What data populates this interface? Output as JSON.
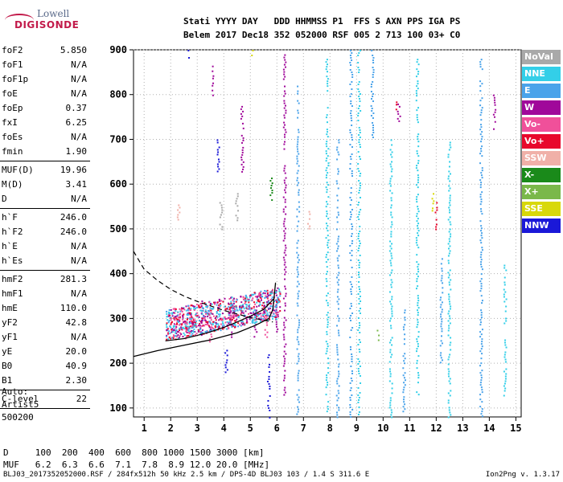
{
  "logo": {
    "line1": "Lowell",
    "line2": "DIGISONDE"
  },
  "header": {
    "line1": "Stati YYYY DAY   DDD HHMMSS P1  FFS S AXN PPS IGA PS",
    "line2": "Belem 2017 Dec18 352 052000 RSF 005 2 713 100 03+ C0"
  },
  "params": [
    [
      {
        "k": "foF2",
        "v": "5.850"
      },
      {
        "k": "foF1",
        "v": "N/A"
      },
      {
        "k": "foF1p",
        "v": "N/A"
      },
      {
        "k": "foE",
        "v": "N/A"
      },
      {
        "k": "foEp",
        "v": "0.37"
      },
      {
        "k": "fxI",
        "v": "6.25"
      },
      {
        "k": "foEs",
        "v": "N/A"
      },
      {
        "k": "fmin",
        "v": "1.90"
      }
    ],
    [
      {
        "k": "MUF(D)",
        "v": "19.96"
      },
      {
        "k": "M(D)",
        "v": "3.41"
      },
      {
        "k": "D",
        "v": "N/A"
      }
    ],
    [
      {
        "k": "h`F",
        "v": "246.0"
      },
      {
        "k": "h`F2",
        "v": "246.0"
      },
      {
        "k": "h`E",
        "v": "N/A"
      },
      {
        "k": "h`Es",
        "v": "N/A"
      }
    ],
    [
      {
        "k": "hmF2",
        "v": "281.3"
      },
      {
        "k": "hmF1",
        "v": "N/A"
      },
      {
        "k": "hmE",
        "v": "110.0"
      },
      {
        "k": "yF2",
        "v": "42.8"
      },
      {
        "k": "yF1",
        "v": "N/A"
      },
      {
        "k": "yE",
        "v": "20.0"
      },
      {
        "k": "B0",
        "v": "40.9"
      },
      {
        "k": "B1",
        "v": "2.30"
      }
    ],
    [
      {
        "k": "C-level",
        "v": "22"
      }
    ]
  ],
  "auto": {
    "line1": "Auto:",
    "line2": "Artist5",
    "line3": "500200"
  },
  "legend": [
    {
      "label": "NoVal",
      "color": "#a9a9a9"
    },
    {
      "label": "NNE",
      "color": "#33cfe8"
    },
    {
      "label": "E",
      "color": "#4aa3ea"
    },
    {
      "label": "W",
      "color": "#a0089a"
    },
    {
      "label": "Vo-",
      "color": "#f0509a"
    },
    {
      "label": "Vo+",
      "color": "#e8082c"
    },
    {
      "label": "SSW",
      "color": "#f0b0a8"
    },
    {
      "label": "X-",
      "color": "#1a8a1a"
    },
    {
      "label": "X+",
      "color": "#7ab84a"
    },
    {
      "label": "SSE",
      "color": "#d8d80a"
    },
    {
      "label": "NNW",
      "color": "#1a18d8"
    }
  ],
  "muf_table": {
    "d_line": "D     100  200  400  600  800 1000 1500 3000 [km]",
    "muf_line": "MUF   6.2  6.3  6.6  7.1  7.8  8.9 12.0 20.0 [MHz]"
  },
  "footer": {
    "left": "BLJ03_2017352052000.RSF / 284fx512h 50 kHz 2.5 km / DPS-4D BLJ03 103 / 1.4 S 311.6 E",
    "right": "Ion2Png v. 1.3.17"
  },
  "chart_data": {
    "type": "scatter",
    "title": "",
    "xlabel": "",
    "ylabel": "",
    "xlim": [
      0.6,
      15.2
    ],
    "ylim": [
      80,
      900
    ],
    "x_ticks": [
      1,
      2,
      3,
      4,
      5,
      6,
      7,
      8,
      9,
      10,
      11,
      12,
      13,
      14,
      15
    ],
    "y_ticks": [
      100,
      200,
      300,
      400,
      500,
      600,
      700,
      800,
      900
    ],
    "grid": "dotted",
    "legend_position": "right",
    "series": [
      {
        "name": "W",
        "segments": [
          {
            "x": 6.3,
            "y": [
              130,
              890
            ]
          },
          {
            "x": 2.1,
            "y": [
              260,
              300
            ]
          },
          {
            "x": 3.2,
            "y": [
              260,
              340
            ]
          },
          {
            "x": 4.3,
            "y": [
              260,
              330
            ]
          },
          {
            "x": 5.2,
            "y": [
              250,
              320
            ]
          },
          {
            "x": 6.0,
            "y": [
              270,
              380
            ]
          },
          {
            "x": 3.6,
            "y": [
              800,
              870
            ]
          },
          {
            "x": 4.7,
            "y": [
              620,
              780
            ]
          },
          {
            "x": 10.6,
            "y": [
              740,
              780
            ]
          },
          {
            "x": 14.2,
            "y": [
              720,
              800
            ]
          }
        ]
      },
      {
        "name": "E",
        "segments": [
          {
            "x": 6.8,
            "y": [
              80,
              820
            ]
          },
          {
            "x": 8.8,
            "y": [
              80,
              900
            ]
          },
          {
            "x": 9.6,
            "y": [
              700,
              900
            ]
          },
          {
            "x": 10.8,
            "y": [
              80,
              320
            ]
          },
          {
            "x": 13.7,
            "y": [
              80,
              880
            ]
          },
          {
            "x": 8.3,
            "y": [
              80,
              700
            ]
          },
          {
            "x": 12.2,
            "y": [
              200,
              440
            ]
          }
        ]
      },
      {
        "name": "NNE",
        "segments": [
          {
            "x": 7.9,
            "y": [
              80,
              880
            ]
          },
          {
            "x": 9.1,
            "y": [
              80,
              900
            ]
          },
          {
            "x": 10.3,
            "y": [
              80,
              700
            ]
          },
          {
            "x": 11.3,
            "y": [
              120,
              880
            ]
          },
          {
            "x": 12.5,
            "y": [
              80,
              700
            ]
          },
          {
            "x": 14.6,
            "y": [
              120,
              420
            ]
          }
        ]
      },
      {
        "name": "NNW",
        "segments": [
          {
            "x": 4.1,
            "y": [
              170,
              230
            ]
          },
          {
            "x": 5.7,
            "y": [
              80,
              220
            ]
          },
          {
            "x": 3.8,
            "y": [
              620,
              700
            ]
          },
          {
            "x": 2.7,
            "y": [
              880,
              900
            ]
          }
        ]
      },
      {
        "name": "Vo-",
        "segments": [
          {
            "x": 3.5,
            "y": [
              250,
              320
            ]
          },
          {
            "x": 5.6,
            "y": [
              260,
              330
            ]
          },
          {
            "x": 2.6,
            "y": [
              250,
              300
            ]
          }
        ]
      },
      {
        "name": "Vo+",
        "segments": [
          {
            "x": 10.5,
            "y": [
              760,
              790
            ]
          },
          {
            "x": 12.0,
            "y": [
              500,
              560
            ]
          }
        ]
      },
      {
        "name": "SSE",
        "segments": [
          {
            "x": 11.9,
            "y": [
              520,
              580
            ]
          },
          {
            "x": 5.1,
            "y": [
              880,
              900
            ]
          }
        ]
      },
      {
        "name": "X-",
        "segments": [
          {
            "x": 5.8,
            "y": [
              560,
              620
            ]
          }
        ]
      },
      {
        "name": "X+",
        "segments": [
          {
            "x": 9.8,
            "y": [
              250,
              280
            ]
          }
        ]
      },
      {
        "name": "SSW",
        "segments": [
          {
            "x": 2.3,
            "y": [
              520,
              560
            ]
          },
          {
            "x": 7.2,
            "y": [
              500,
              540
            ]
          }
        ]
      },
      {
        "name": "NoVal",
        "segments": [
          {
            "x": 3.9,
            "y": [
              500,
              560
            ]
          },
          {
            "x": 4.5,
            "y": [
              520,
              580
            ]
          }
        ]
      }
    ],
    "profile_solid": {
      "x": [
        0.6,
        1.5,
        2.5,
        3.5,
        4.5,
        5.2,
        5.7,
        5.85,
        5.95
      ],
      "y": [
        215,
        228,
        240,
        252,
        268,
        285,
        300,
        320,
        380
      ]
    },
    "profile_dashed": {
      "x": [
        0.6,
        1.0,
        1.5,
        2.0,
        2.5,
        3.0,
        3.5,
        4.0,
        4.5,
        5.0,
        5.5,
        5.85
      ],
      "y": [
        450,
        410,
        385,
        365,
        350,
        338,
        328,
        318,
        310,
        302,
        296,
        292
      ]
    },
    "trace_curve": {
      "x": [
        1.8,
        2.5,
        3.0,
        3.5,
        4.0,
        4.5,
        5.0,
        5.5,
        5.9
      ],
      "y": [
        250,
        255,
        262,
        270,
        280,
        292,
        305,
        320,
        345
      ]
    }
  }
}
